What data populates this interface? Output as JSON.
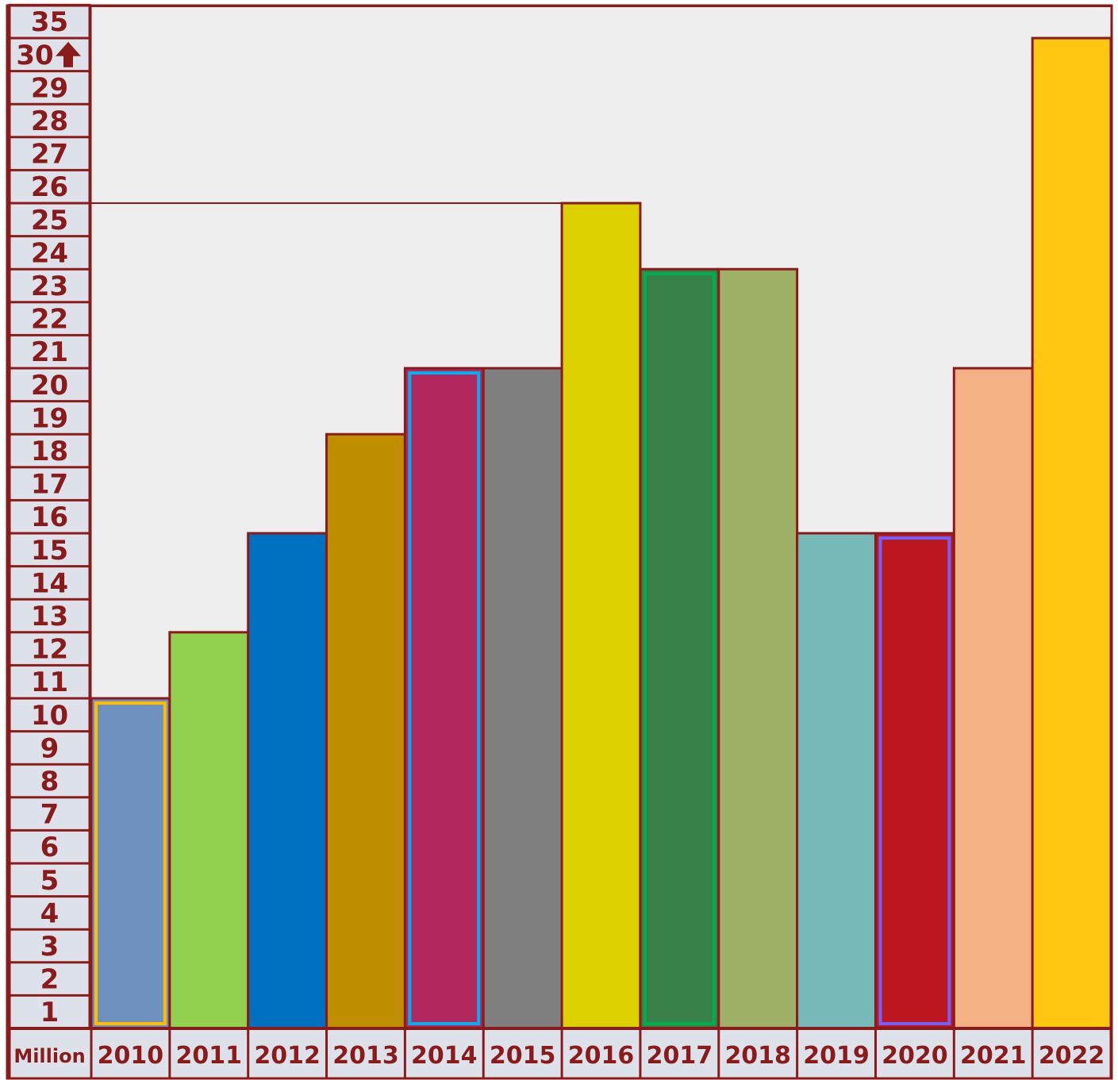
{
  "chart_data": {
    "type": "bar",
    "unit_label": "Million",
    "categories": [
      "2010",
      "2011",
      "2012",
      "2013",
      "2014",
      "2015",
      "2016",
      "2017",
      "2018",
      "2019",
      "2020",
      "2021",
      "2022"
    ],
    "values": [
      10,
      12,
      15,
      18,
      20,
      20,
      25,
      23,
      23,
      15,
      15,
      20,
      30
    ],
    "colors": [
      "#6f91bf",
      "#92d050",
      "#0070c0",
      "#bf8f00",
      "#b0285e",
      "#7f7f7f",
      "#dcd000",
      "#388048",
      "#9fb067",
      "#77b8b8",
      "#bc1620",
      "#f4b183",
      "#ffc612"
    ],
    "highlight_borders": [
      "#ffbf00",
      null,
      null,
      null,
      "#00b0f0",
      null,
      null,
      "#00b050",
      null,
      null,
      "#7060ff",
      null,
      null
    ],
    "y_ticks": [
      "1",
      "2",
      "3",
      "4",
      "5",
      "6",
      "7",
      "8",
      "9",
      "10",
      "11",
      "12",
      "13",
      "14",
      "15",
      "16",
      "17",
      "18",
      "19",
      "20",
      "21",
      "22",
      "23",
      "24",
      "25",
      "26",
      "27",
      "28",
      "29",
      "30",
      "35"
    ],
    "y_tick_values": [
      1,
      2,
      3,
      4,
      5,
      6,
      7,
      8,
      9,
      10,
      11,
      12,
      13,
      14,
      15,
      16,
      17,
      18,
      19,
      20,
      21,
      22,
      23,
      24,
      25,
      26,
      27,
      28,
      29,
      30,
      35
    ],
    "axis_break_after": 30,
    "axis_break_icon": "up-arrow-icon",
    "guide_line_value": 25,
    "grid": false,
    "legend": "none",
    "frame_color": "#8b1a1a",
    "tick_text_color": "#8b1a1a",
    "background_color": "#eeeeef"
  }
}
